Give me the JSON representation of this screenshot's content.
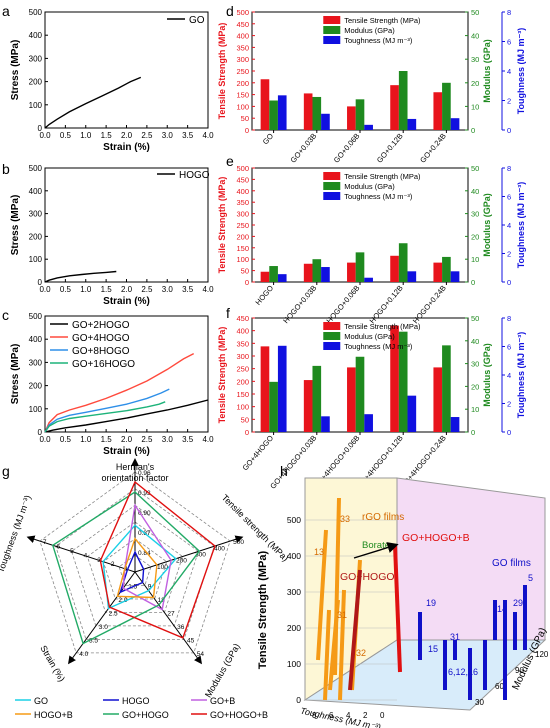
{
  "panel_letters": {
    "a": "a",
    "b": "b",
    "c": "c",
    "d": "d",
    "e": "e",
    "f": "f",
    "g": "g",
    "h": "h"
  },
  "colors": {
    "strength": "#e8141c",
    "modulus": "#1f8a1f",
    "toughness": "#1010e0",
    "GO": "#1ad0e6",
    "HOGO": "#1010d0",
    "GOB": "#c060e0",
    "HOGOB": "#f59a16",
    "GOHOGO": "#22aa66",
    "GOHOGOB": "#e01010",
    "c0": "#000000",
    "c1": "#ff4a3d",
    "c2": "#2e8fe8",
    "c3": "#1db37a"
  },
  "chart_data": [
    {
      "panel": "a",
      "type": "line",
      "xlabel": "Strain (%)",
      "ylabel": "Stress (MPa)",
      "xticks": [
        "0.0",
        "0.5",
        "1.0",
        "1.5",
        "2.0",
        "2.5",
        "3.0",
        "3.5",
        "4.0"
      ],
      "yticks": [
        "0",
        "100",
        "200",
        "300",
        "400",
        "500"
      ],
      "xlim": [
        0,
        4
      ],
      "ylim": [
        0,
        500
      ],
      "series": [
        {
          "name": "GO",
          "x": [
            0,
            0.1,
            0.3,
            0.6,
            1.0,
            1.4,
            1.8,
            2.1,
            2.35
          ],
          "y": [
            0,
            15,
            38,
            70,
            105,
            138,
            172,
            200,
            218
          ]
        }
      ]
    },
    {
      "panel": "b",
      "type": "line",
      "xlabel": "Strain (%)",
      "ylabel": "Stress (MPa)",
      "xticks": [
        "0.0",
        "0.5",
        "1.0",
        "1.5",
        "2.0",
        "2.5",
        "3.0",
        "3.5",
        "4.0"
      ],
      "yticks": [
        "0",
        "100",
        "200",
        "300",
        "400",
        "500"
      ],
      "xlim": [
        0,
        4
      ],
      "ylim": [
        0,
        500
      ],
      "series": [
        {
          "name": "HOGO",
          "x": [
            0,
            0.1,
            0.3,
            0.6,
            0.9,
            1.2,
            1.5,
            1.75
          ],
          "y": [
            0,
            8,
            18,
            27,
            33,
            38,
            42,
            46
          ]
        }
      ]
    },
    {
      "panel": "c",
      "type": "line",
      "xlabel": "Strain (%)",
      "ylabel": "Stress (MPa)",
      "xticks": [
        "0.0",
        "0.5",
        "1.0",
        "1.5",
        "2.0",
        "2.5",
        "3.0",
        "3.5",
        "4.0"
      ],
      "yticks": [
        "0",
        "100",
        "200",
        "300",
        "400",
        "500"
      ],
      "xlim": [
        0,
        4
      ],
      "ylim": [
        0,
        500
      ],
      "series": [
        {
          "name": "GO+2HOGO",
          "x": [
            0,
            0.2,
            0.5,
            1.0,
            1.5,
            2.0,
            2.5,
            3.0,
            3.5,
            4.0
          ],
          "y": [
            0,
            8,
            18,
            30,
            45,
            60,
            78,
            95,
            115,
            138
          ]
        },
        {
          "name": "GO+4HOGO",
          "x": [
            0,
            0.1,
            0.3,
            0.6,
            1.0,
            1.5,
            2.0,
            2.5,
            3.0,
            3.4,
            3.65
          ],
          "y": [
            0,
            40,
            75,
            95,
            115,
            145,
            180,
            220,
            270,
            315,
            338
          ]
        },
        {
          "name": "GO+8HOGO",
          "x": [
            0,
            0.1,
            0.3,
            0.6,
            1.0,
            1.5,
            2.0,
            2.5,
            2.85,
            3.05
          ],
          "y": [
            0,
            30,
            55,
            72,
            85,
            102,
            120,
            145,
            168,
            185
          ]
        },
        {
          "name": "GO+16HOGO",
          "x": [
            0,
            0.1,
            0.3,
            0.6,
            1.0,
            1.5,
            2.0,
            2.5,
            2.8,
            2.95
          ],
          "y": [
            0,
            25,
            45,
            58,
            68,
            80,
            92,
            108,
            120,
            130
          ]
        }
      ]
    },
    {
      "panel": "d",
      "type": "bar",
      "categories": [
        "GO",
        "GO+0.03B",
        "GO+0.06B",
        "GO+0.12B",
        "GO+0.24B"
      ],
      "ylabel": "Tensile Strength (MPa)",
      "y2label": "Modulus (GPa)",
      "y3label": "Toughness (MJ m⁻³)",
      "yticks": [
        "0",
        "50",
        "100",
        "150",
        "200",
        "250",
        "300",
        "350",
        "400",
        "450",
        "500"
      ],
      "y2ticks": [
        "0",
        "10",
        "20",
        "30",
        "40",
        "50"
      ],
      "y3ticks": [
        "0",
        "2",
        "4",
        "6",
        "8"
      ],
      "ylim": [
        0,
        500
      ],
      "y2lim": [
        0,
        50
      ],
      "y3lim": [
        0,
        8
      ],
      "legend": [
        "Tensile Strength (MPa)",
        "Modulus (GPa)",
        "Toughness (MJ m⁻³)"
      ],
      "series": [
        {
          "name": "Tensile Strength (MPa)",
          "values": [
            215,
            155,
            100,
            190,
            160
          ]
        },
        {
          "name": "Modulus (GPa)",
          "values": [
            12.5,
            14,
            13,
            25,
            20
          ]
        },
        {
          "name": "Toughness (MJ m⁻³)",
          "values": [
            2.35,
            1.1,
            0.35,
            0.75,
            0.8
          ]
        }
      ]
    },
    {
      "panel": "e",
      "type": "bar",
      "categories": [
        "HOGO",
        "HOGO+0.03B",
        "HOGO+0.06B",
        "HOGO+0.12B",
        "HOGO+0.24B"
      ],
      "ylabel": "Tensile Strength (MPa)",
      "y2label": "Modulus (GPa)",
      "y3label": "Toughness (MJ m⁻³)",
      "yticks": [
        "0",
        "50",
        "100",
        "150",
        "200",
        "250",
        "300",
        "350",
        "400",
        "450",
        "500"
      ],
      "y2ticks": [
        "0",
        "10",
        "20",
        "30",
        "40",
        "50"
      ],
      "y3ticks": [
        "0",
        "2",
        "4",
        "6",
        "8"
      ],
      "ylim": [
        0,
        500
      ],
      "y2lim": [
        0,
        50
      ],
      "y3lim": [
        0,
        8
      ],
      "legend": [
        "Tensile Strength (MPa)",
        "Modulus (GPa)",
        "Toughness (MJ m⁻³)"
      ],
      "series": [
        {
          "name": "Tensile Strength (MPa)",
          "values": [
            45,
            80,
            85,
            115,
            85
          ]
        },
        {
          "name": "Modulus (GPa)",
          "values": [
            7,
            10,
            13,
            17,
            11
          ]
        },
        {
          "name": "Toughness (MJ m⁻³)",
          "values": [
            0.55,
            1.05,
            0.3,
            0.75,
            0.75
          ]
        }
      ]
    },
    {
      "panel": "f",
      "type": "bar",
      "categories": [
        "GO+4HOGO",
        "GO+4HOGO+0.03B",
        "GO+4HOGO+0.06B",
        "GO+4HOGO+0.12B",
        "GO+4HOGO+0.24B"
      ],
      "ylabel": "Tensile Strength (MPa)",
      "y2label": "Modulus (GPa)",
      "y3label": "Toughness (MJ m⁻³)",
      "yticks": [
        "0",
        "50",
        "100",
        "150",
        "200",
        "250",
        "300",
        "350",
        "400",
        "450"
      ],
      "y2ticks": [
        "0",
        "10",
        "20",
        "30",
        "40",
        "50"
      ],
      "y3ticks": [
        "0",
        "2",
        "4",
        "6",
        "8"
      ],
      "ylim": [
        0,
        450
      ],
      "y2lim": [
        0,
        50
      ],
      "y3lim": [
        0,
        8
      ],
      "legend": [
        "Tensile Strength (MPa)",
        "Modulus (GPa)",
        "Toughness (MJ m⁻³)"
      ],
      "series": [
        {
          "name": "Tensile Strength (MPa)",
          "values": [
            338,
            205,
            255,
            420,
            255
          ]
        },
        {
          "name": "Modulus (GPa)",
          "values": [
            22,
            29,
            33,
            44,
            38
          ]
        },
        {
          "name": "Toughness (MJ m⁻³)",
          "values": [
            6.05,
            1.1,
            1.25,
            2.55,
            1.05
          ]
        }
      ]
    },
    {
      "panel": "g",
      "type": "radar",
      "axes": [
        {
          "label": "Herman's orientation factor",
          "ticks": [
            "0.84",
            "0.87",
            "0.90",
            "0.93",
            "0.96"
          ],
          "range": [
            0.81,
            0.96
          ]
        },
        {
          "label": "Tensile strength (MPa)",
          "ticks": [
            "100",
            "200",
            "300",
            "400",
            "500"
          ],
          "range": [
            0,
            500
          ]
        },
        {
          "label": "Modulus (GPa)",
          "ticks": [
            "9",
            "18",
            "27",
            "36",
            "45",
            "54"
          ],
          "range": [
            0,
            54
          ]
        },
        {
          "label": "Strain (%)",
          "ticks": [
            "1.5",
            "2.0",
            "2.5",
            "3.0",
            "3.5",
            "4.0"
          ],
          "range": [
            1.0,
            4.0
          ]
        },
        {
          "label": "Toughness (MJ m⁻³)",
          "ticks": [
            "1",
            "2",
            "3",
            "4",
            "5",
            "6",
            "7"
          ],
          "range": [
            0,
            7
          ]
        }
      ],
      "legend_position": "bottom",
      "series": [
        {
          "name": "GO",
          "values": [
            0.88,
            215,
            12.5,
            2.35,
            2.35
          ]
        },
        {
          "name": "HOGO",
          "values": [
            0.84,
            45,
            7,
            1.75,
            0.55
          ]
        },
        {
          "name": "GO+B",
          "values": [
            0.91,
            190,
            25,
            1.6,
            0.75
          ]
        },
        {
          "name": "HOGO+B",
          "values": [
            0.86,
            115,
            17,
            1.9,
            0.75
          ]
        },
        {
          "name": "GO+HOGO",
          "values": [
            0.93,
            338,
            22,
            3.65,
            6.05
          ]
        },
        {
          "name": "GO+HOGO+B",
          "values": [
            0.945,
            420,
            44,
            2.3,
            2.55
          ]
        }
      ]
    },
    {
      "panel": "h",
      "type": "bar3d",
      "ylabel": "Tensile Strength (MPa)",
      "xlabel": "Toughness (MJ m⁻³)",
      "zlabel": "Modulus (GPa)",
      "zticks": [
        "0",
        "100",
        "200",
        "300",
        "400",
        "500"
      ],
      "xticks": [
        "8",
        "6",
        "4",
        "2",
        "0"
      ],
      "modticks": [
        "30",
        "60",
        "90",
        "120"
      ],
      "groups": [
        {
          "name": "rGO films",
          "labels": [
            "33",
            "13",
            "31",
            "32"
          ]
        },
        {
          "name": "GO films",
          "labels": [
            "19",
            "14",
            "29",
            "5",
            "15",
            "31",
            "6,12,16"
          ]
        }
      ],
      "annotations": [
        "GO+HOGO+B",
        "GO+HOGO",
        "Borate"
      ]
    }
  ]
}
